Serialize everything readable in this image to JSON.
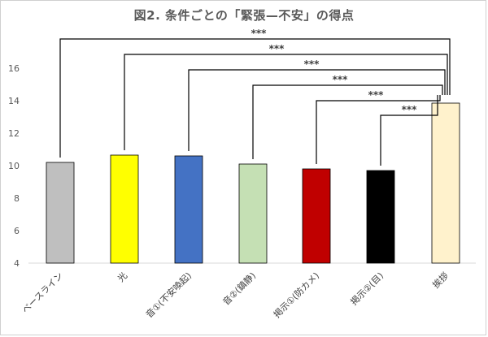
{
  "chart_data": {
    "type": "bar",
    "title": "図2.  条件ごとの「緊張—不安」の得点",
    "categories": [
      "ベースライン",
      "光",
      "音①(不安喚起)",
      "音②(鎮静)",
      "掲示①(防カメ)",
      "掲示②(目)",
      "挨拶"
    ],
    "values": [
      10.2,
      10.65,
      10.6,
      10.1,
      9.8,
      9.7,
      13.85
    ],
    "colors": [
      "#bfbfbf",
      "#ffff00",
      "#4472c4",
      "#c5e0b4",
      "#c00000",
      "#000000",
      "#fff2cc"
    ],
    "ylim": [
      4,
      16
    ],
    "yticks": [
      4,
      6,
      8,
      10,
      12,
      14,
      16
    ],
    "xlabel": "",
    "ylabel": "",
    "grid": false,
    "significance": [
      {
        "from": "ベースライン",
        "to": "挨拶",
        "label": "***"
      },
      {
        "from": "光",
        "to": "挨拶",
        "label": "***"
      },
      {
        "from": "音①(不安喚起)",
        "to": "挨拶",
        "label": "***"
      },
      {
        "from": "音②(鎮静)",
        "to": "挨拶",
        "label": "***"
      },
      {
        "from": "掲示①(防カメ)",
        "to": "挨拶",
        "label": "***"
      },
      {
        "from": "掲示②(目)",
        "to": "挨拶",
        "label": "***"
      }
    ]
  }
}
